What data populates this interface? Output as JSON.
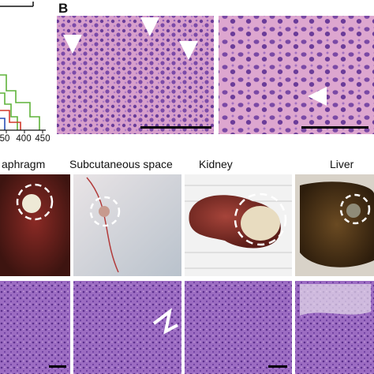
{
  "panel_label": "B",
  "survival_axis": {
    "ticks": [
      50,
      400,
      450
    ]
  },
  "sites": [
    "aphragm",
    "Subcutaneous space",
    "Kidney",
    "Liver"
  ]
}
